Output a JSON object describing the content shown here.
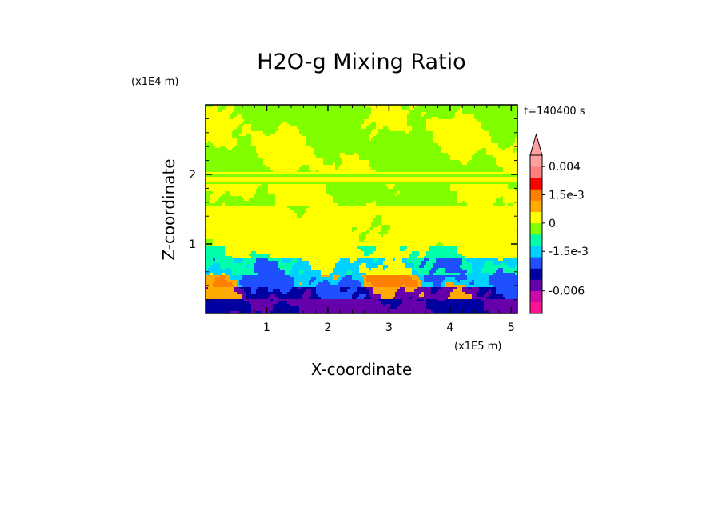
{
  "chart_data": {
    "type": "heatmap",
    "title": "H2O-g Mixing Ratio",
    "xlabel": "X-coordinate",
    "ylabel": "Z-coordinate",
    "x_unit": "(x1E5 m)",
    "y_unit": "(x1E4 m)",
    "time_label": "t=140400 s",
    "xlim": [
      0,
      5.1
    ],
    "ylim": [
      0,
      3.0
    ],
    "x_ticks": [
      1,
      2,
      3,
      4,
      5
    ],
    "y_ticks": [
      1,
      2
    ],
    "x_tick_labels": [
      "1",
      "2",
      "3",
      "4",
      "5"
    ],
    "y_tick_labels": [
      "1",
      "2"
    ],
    "colorbar": {
      "extend": "max",
      "labels": [
        "0.004",
        "1.5e-3",
        "0",
        "-1.5e-3",
        "-0.006"
      ],
      "bins": [
        {
          "color": "#ff1493"
        },
        {
          "color": "#cc0aa8"
        },
        {
          "color": "#6600aa"
        },
        {
          "color": "#0000a0"
        },
        {
          "color": "#1e50ff"
        },
        {
          "color": "#00d2ff"
        },
        {
          "color": "#00ffaa"
        },
        {
          "color": "#80ff00"
        },
        {
          "color": "#ffff00"
        },
        {
          "color": "#ffaa00"
        },
        {
          "color": "#ff7f00"
        },
        {
          "color": "#ff0000"
        },
        {
          "color": "#ff7f7f"
        },
        {
          "color": "#ffa0a0"
        }
      ]
    },
    "field_description_levels": [
      {
        "z_range": [
          0.0,
          0.35
        ],
        "dominant": "purple/blue"
      },
      {
        "z_range": [
          0.35,
          0.8
        ],
        "dominant": "cyan/orange"
      },
      {
        "z_range": [
          0.8,
          2.0
        ],
        "dominant": "yellow"
      },
      {
        "z_range": [
          2.0,
          3.0
        ],
        "dominant": "green/yellow"
      }
    ]
  }
}
